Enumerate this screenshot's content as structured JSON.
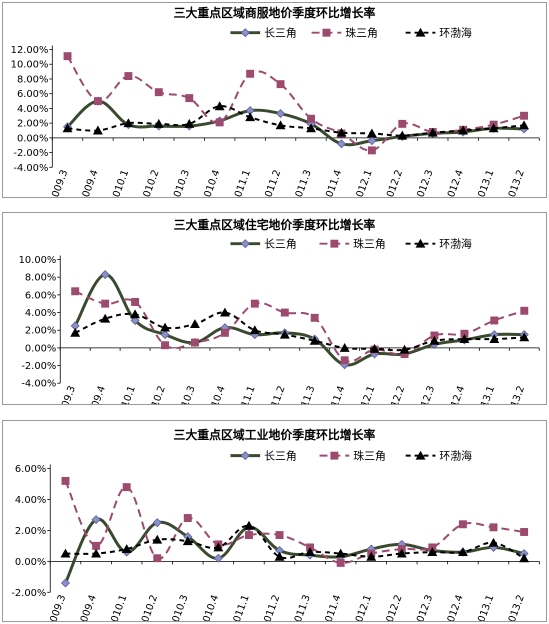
{
  "colors": {
    "yangtze": "#3a4a2e",
    "pearl": "#9c4a6e",
    "bohai": "#000000"
  },
  "chart_data": [
    {
      "type": "line",
      "title": "三大重点区域商服地价季度环比增长率",
      "categories": [
        "2009.3",
        "2009.4",
        "2010.1",
        "2010.2",
        "2010.3",
        "2010.4",
        "2011.1",
        "2011.2",
        "2011.3",
        "2011.4",
        "2012.1",
        "2012.2",
        "2012.3",
        "2012.4",
        "2013.1",
        "2013.2"
      ],
      "ylim": [
        -4,
        12
      ],
      "yticks": [
        "12.00%",
        "10.00%",
        "8.00%",
        "6.00%",
        "4.00%",
        "2.00%",
        "0.00%",
        "-2.00%",
        "-4.00%"
      ],
      "legend_position": "top",
      "series": [
        {
          "name": "长三角",
          "values": [
            1.5,
            5.0,
            1.8,
            1.6,
            1.6,
            2.3,
            3.7,
            3.3,
            1.9,
            -0.8,
            -0.4,
            0.2,
            0.6,
            0.8,
            1.3,
            1.2
          ]
        },
        {
          "name": "珠三角",
          "values": [
            11.1,
            5.0,
            8.4,
            6.2,
            5.4,
            2.1,
            8.7,
            7.3,
            2.6,
            0.6,
            -1.7,
            1.9,
            0.8,
            1.1,
            1.8,
            3.0
          ]
        },
        {
          "name": "环渤海",
          "values": [
            1.3,
            1.0,
            2.0,
            1.9,
            1.9,
            4.3,
            2.8,
            1.7,
            1.3,
            0.7,
            0.6,
            0.3,
            0.7,
            1.0,
            1.3,
            1.7
          ]
        }
      ]
    },
    {
      "type": "line",
      "title": "三大重点区域住宅地价季度环比增长率",
      "categories": [
        "2009.3",
        "2009.4",
        "2010.1",
        "2010.2",
        "2010.3",
        "2010.4",
        "2011.1",
        "2011.2",
        "2011.3",
        "2011.4",
        "2012.1",
        "2012.2",
        "2012.3",
        "2012.4",
        "2013.1",
        "2013.2"
      ],
      "ylim": [
        -4,
        10
      ],
      "yticks": [
        "10.00%",
        "8.00%",
        "6.00%",
        "4.00%",
        "2.00%",
        "0.00%",
        "-2.00%",
        "-4.00%"
      ],
      "legend_position": "top",
      "series": [
        {
          "name": "长三角",
          "values": [
            2.5,
            8.3,
            3.1,
            1.5,
            0.6,
            2.3,
            1.5,
            1.7,
            1.0,
            -1.9,
            -0.7,
            -0.7,
            0.4,
            0.9,
            1.5,
            1.5
          ]
        },
        {
          "name": "珠三角",
          "values": [
            6.4,
            5.0,
            5.2,
            0.3,
            0.6,
            1.7,
            5.0,
            4.0,
            3.4,
            -1.4,
            -0.2,
            -0.7,
            1.4,
            1.6,
            3.1,
            4.2
          ]
        },
        {
          "name": "环渤海",
          "values": [
            1.7,
            3.3,
            3.8,
            2.3,
            2.7,
            4.0,
            2.0,
            1.5,
            0.8,
            0.0,
            -0.1,
            -0.2,
            0.8,
            1.0,
            1.0,
            1.2
          ]
        }
      ]
    },
    {
      "type": "line",
      "title": "三大重点区域工业地价季度环比增长率",
      "categories": [
        "2009.3",
        "2009.4",
        "2010.1",
        "2010.2",
        "2010.3",
        "2010.4",
        "2011.1",
        "2011.2",
        "2011.3",
        "2011.4",
        "2012.1",
        "2012.2",
        "2012.3",
        "2012.4",
        "2013.1",
        "2013.2"
      ],
      "ylim": [
        -2,
        6
      ],
      "yticks": [
        "6.00%",
        "4.00%",
        "2.00%",
        "0.00%",
        "-2.00%"
      ],
      "legend_position": "top",
      "series": [
        {
          "name": "长三角",
          "values": [
            -1.4,
            2.7,
            0.6,
            2.5,
            1.6,
            0.2,
            2.2,
            0.7,
            0.4,
            0.3,
            0.8,
            1.1,
            0.7,
            0.6,
            0.9,
            0.5
          ]
        },
        {
          "name": "珠三角",
          "values": [
            5.2,
            1.0,
            4.8,
            0.2,
            2.8,
            1.1,
            1.7,
            1.7,
            0.9,
            -0.1,
            0.5,
            0.8,
            0.9,
            2.4,
            2.2,
            1.9
          ]
        },
        {
          "name": "环渤海",
          "values": [
            0.5,
            0.5,
            0.8,
            1.4,
            1.3,
            0.9,
            2.3,
            0.3,
            0.6,
            0.5,
            0.3,
            0.5,
            0.6,
            0.6,
            1.2,
            0.2
          ]
        }
      ]
    }
  ]
}
